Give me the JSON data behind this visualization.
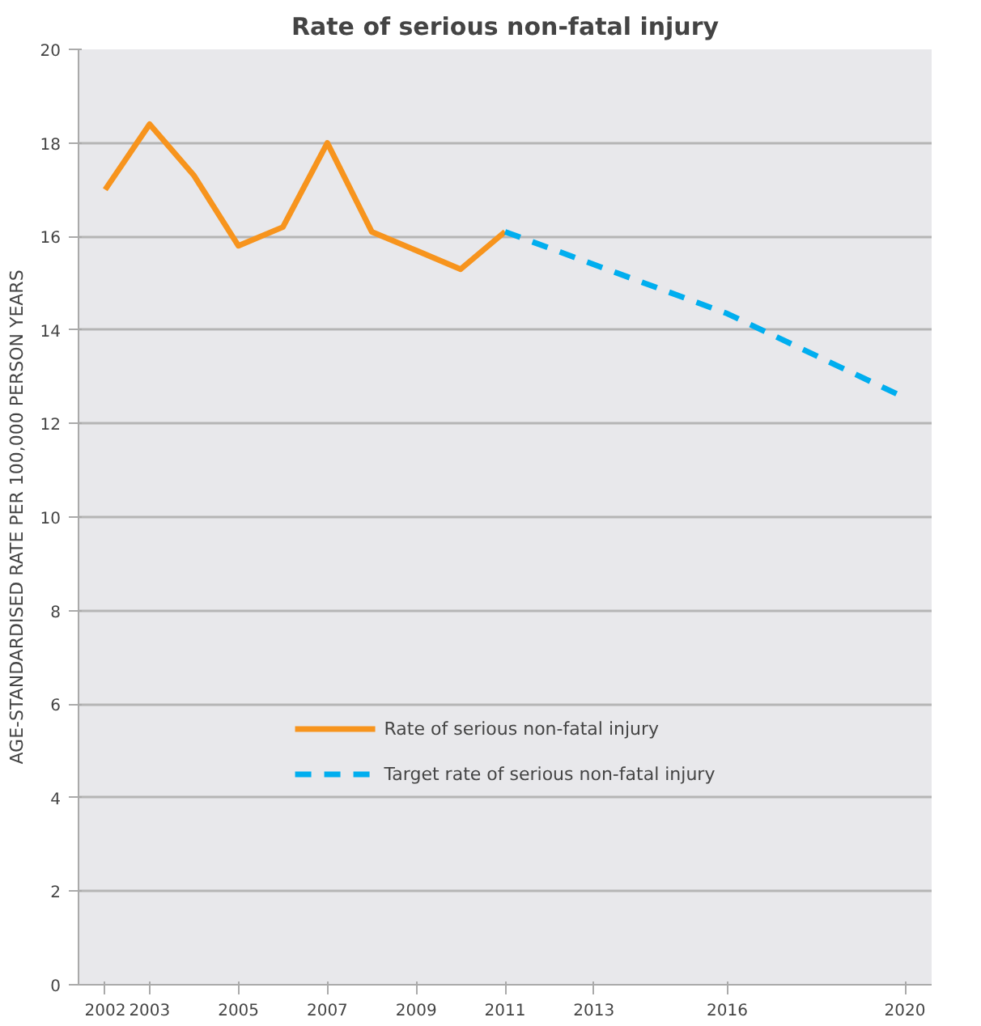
{
  "chart_data": {
    "type": "line",
    "title": "Rate of serious non-fatal injury",
    "ylabel": "AGE-STANDARDISED RATE PER 100,000 PERSON YEARS",
    "series": [
      {
        "name": "Rate of serious non-fatal injury",
        "color": "#f7941d",
        "line_style": "solid",
        "x": [
          2002,
          2003,
          2004,
          2005,
          2006,
          2007,
          2008,
          2009,
          2010,
          2011
        ],
        "values": [
          17.0,
          18.4,
          17.3,
          15.8,
          16.2,
          18.0,
          16.1,
          15.7,
          15.3,
          16.1
        ]
      },
      {
        "name": "Target rate of serious non-fatal injury",
        "color": "#00aeef",
        "line_style": "dashed",
        "x": [
          2011,
          2016,
          2020
        ],
        "values": [
          16.1,
          14.35,
          12.55
        ]
      }
    ],
    "xlim": [
      2001.4,
      2020.6
    ],
    "xticks": [
      2002,
      2003,
      2005,
      2007,
      2009,
      2011,
      2013,
      2016,
      2020
    ],
    "ylim": [
      0,
      20
    ],
    "yticks": [
      0,
      2,
      4,
      6,
      8,
      10,
      12,
      14,
      16,
      18,
      20
    ],
    "grid": "y",
    "legend": "bottom",
    "marker": "none"
  }
}
